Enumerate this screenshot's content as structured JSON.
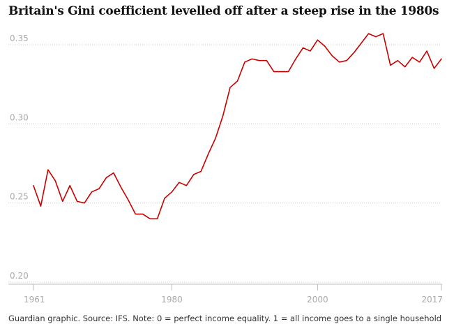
{
  "chart_data": {
    "type": "line",
    "title": "Britain's Gini coefficient levelled off after a steep rise in the 1980s",
    "xlabel": "",
    "ylabel": "",
    "xlim": [
      1961,
      2017
    ],
    "ylim": [
      0.2,
      0.36
    ],
    "x_ticks": [
      1961,
      1980,
      2000,
      2017
    ],
    "y_ticks": [
      0.2,
      0.25,
      0.3,
      0.35
    ],
    "y_tick_labels": [
      "0.20",
      "0.25",
      "0.30",
      "0.35"
    ],
    "grid": "horizontal dotted",
    "series": [
      {
        "color": "#c70000",
        "x": [
          1961,
          1962,
          1963,
          1964,
          1965,
          1966,
          1967,
          1968,
          1969,
          1970,
          1971,
          1972,
          1973,
          1974,
          1975,
          1976,
          1977,
          1978,
          1979,
          1980,
          1981,
          1982,
          1983,
          1984,
          1985,
          1986,
          1987,
          1988,
          1989,
          1990,
          1991,
          1992,
          1993,
          1994,
          1995,
          1996,
          1997,
          1998,
          1999,
          2000,
          2001,
          2002,
          2003,
          2004,
          2005,
          2006,
          2007,
          2008,
          2009,
          2010,
          2011,
          2012,
          2013,
          2014,
          2015,
          2016,
          2017
        ],
        "values": [
          0.261,
          0.248,
          0.271,
          0.264,
          0.251,
          0.261,
          0.251,
          0.25,
          0.257,
          0.259,
          0.266,
          0.269,
          0.26,
          0.252,
          0.243,
          0.243,
          0.24,
          0.24,
          0.253,
          0.257,
          0.263,
          0.261,
          0.268,
          0.27,
          0.281,
          0.291,
          0.305,
          0.323,
          0.327,
          0.339,
          0.341,
          0.34,
          0.34,
          0.333,
          0.333,
          0.333,
          0.341,
          0.348,
          0.346,
          0.353,
          0.349,
          0.343,
          0.339,
          0.34,
          0.345,
          0.351,
          0.357,
          0.355,
          0.357,
          0.337,
          0.34,
          0.336,
          0.342,
          0.339,
          0.346,
          0.335,
          0.341
        ]
      }
    ]
  },
  "footer": "Guardian graphic. Source: IFS. Note: 0 = perfect income equality. 1 = all income goes to a single household"
}
